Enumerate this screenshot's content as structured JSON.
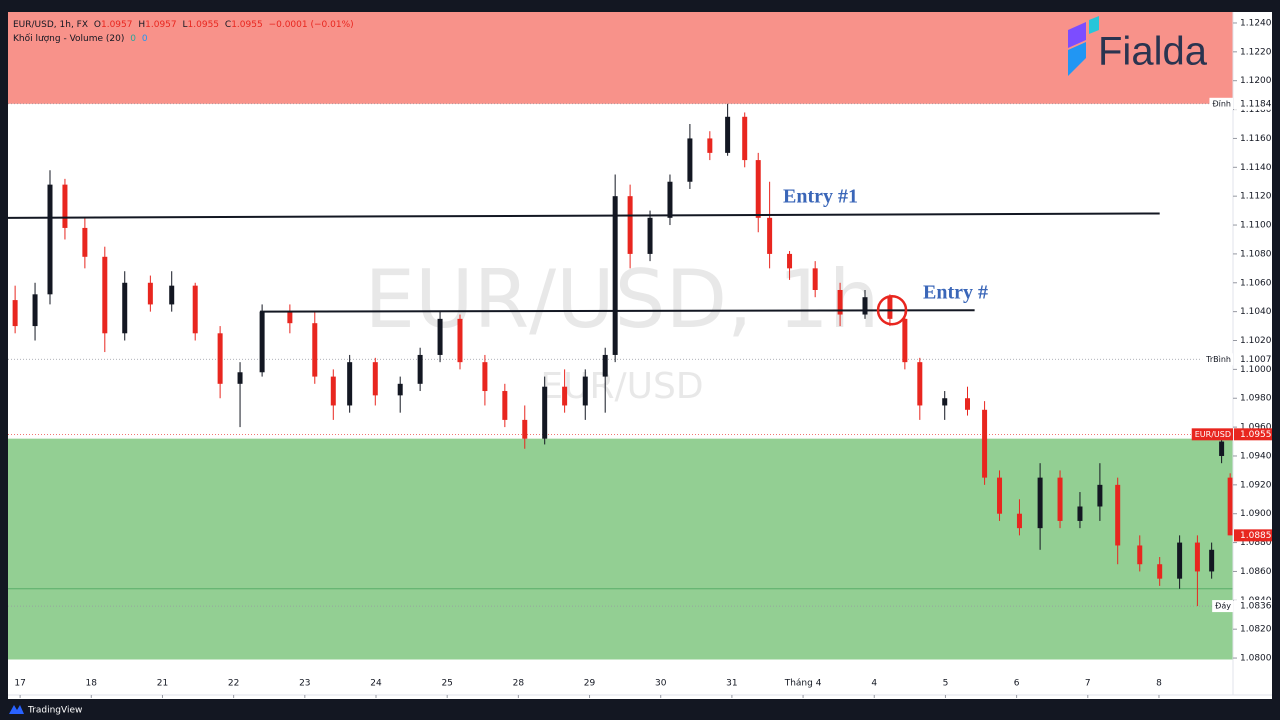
{
  "chart_data": {
    "type": "candlestick",
    "legend": {
      "symbol": "EUR/USD, 1h, FX",
      "o_label": "O",
      "o": 1.0957,
      "h_label": "H",
      "h": 1.0957,
      "l_label": "L",
      "l": 1.0955,
      "c_label": "C",
      "c": 1.0955,
      "change": "−0.0001 (−0.01%)"
    },
    "volume": {
      "label": "Khối lượng - Volume (20)",
      "v1": 0,
      "v2": 0
    },
    "watermark": {
      "main": "EUR/USD, 1h",
      "sub": "EUR/USD"
    },
    "logo": "Fialda",
    "footer": "TradingView",
    "up_color": "#131722",
    "down_color": "#e8261f",
    "xlim": [
      -0.17,
      17.04
    ],
    "ylim": [
      1.07744,
      1.12476
    ],
    "xticks": [
      {
        "value": 0,
        "label": "17"
      },
      {
        "value": 1,
        "label": "18"
      },
      {
        "value": 2,
        "label": "21"
      },
      {
        "value": 3,
        "label": "22"
      },
      {
        "value": 4,
        "label": "23"
      },
      {
        "value": 5,
        "label": "24"
      },
      {
        "value": 6,
        "label": "25"
      },
      {
        "value": 7,
        "label": "28"
      },
      {
        "value": 8,
        "label": "29"
      },
      {
        "value": 9,
        "label": "30"
      },
      {
        "value": 10,
        "label": "31"
      },
      {
        "value": 11,
        "label": "Tháng 4"
      },
      {
        "value": 12,
        "label": "4"
      },
      {
        "value": 13,
        "label": "5"
      },
      {
        "value": 14,
        "label": "6"
      },
      {
        "value": 15,
        "label": "7"
      },
      {
        "value": 16,
        "label": "8"
      }
    ],
    "yticks": [
      {
        "value": 1.124,
        "label": "1.1240"
      },
      {
        "value": 1.122,
        "label": "1.1220"
      },
      {
        "value": 1.12,
        "label": "1.1200"
      },
      {
        "value": 1.118,
        "label": "1.1180"
      },
      {
        "value": 1.116,
        "label": "1.1160"
      },
      {
        "value": 1.114,
        "label": "1.1140"
      },
      {
        "value": 1.112,
        "label": "1.1120"
      },
      {
        "value": 1.11,
        "label": "1.1100"
      },
      {
        "value": 1.108,
        "label": "1.1080"
      },
      {
        "value": 1.106,
        "label": "1.1060"
      },
      {
        "value": 1.104,
        "label": "1.1040"
      },
      {
        "value": 1.102,
        "label": "1.1020"
      },
      {
        "value": 1.1,
        "label": "1.1000"
      },
      {
        "value": 1.098,
        "label": "1.0980"
      },
      {
        "value": 1.096,
        "label": "1.0960"
      },
      {
        "value": 1.094,
        "label": "1.0940"
      },
      {
        "value": 1.092,
        "label": "1.0920"
      },
      {
        "value": 1.09,
        "label": "1.0900"
      },
      {
        "value": 1.088,
        "label": "1.0880"
      },
      {
        "value": 1.086,
        "label": "1.0860"
      },
      {
        "value": 1.084,
        "label": "1.0840"
      },
      {
        "value": 1.082,
        "label": "1.0820"
      },
      {
        "value": 1.08,
        "label": "1.0800"
      }
    ],
    "x": [
      -0.07,
      0.21,
      0.42,
      0.63,
      0.91,
      1.19,
      1.47,
      1.83,
      2.13,
      2.46,
      2.81,
      3.09,
      3.4,
      3.79,
      4.14,
      4.4,
      4.63,
      4.99,
      5.34,
      5.62,
      5.9,
      6.18,
      6.53,
      6.81,
      7.09,
      7.37,
      7.65,
      7.94,
      8.22,
      8.36,
      8.57,
      8.85,
      9.13,
      9.41,
      9.69,
      9.94,
      10.18,
      10.37,
      10.53,
      10.81,
      11.17,
      11.52,
      11.87,
      12.22,
      12.43,
      12.64,
      12.99,
      13.31,
      13.55,
      13.76,
      14.04,
      14.33,
      14.61,
      14.89,
      15.17,
      15.42,
      15.73,
      16.01,
      16.29,
      16.54,
      16.74,
      16.88,
      17.0
    ],
    "open": [
      1.1048,
      1.103,
      1.1052,
      1.1128,
      1.1098,
      1.1078,
      1.1025,
      1.106,
      1.1045,
      1.1058,
      1.1025,
      1.099,
      1.0998,
      1.104,
      1.1032,
      1.0995,
      1.0975,
      1.1005,
      1.0982,
      1.099,
      1.101,
      1.1035,
      1.1005,
      1.0985,
      1.0965,
      1.0952,
      1.0988,
      1.0975,
      1.0995,
      1.101,
      1.112,
      1.108,
      1.1105,
      1.113,
      1.116,
      1.115,
      1.1175,
      1.1145,
      1.1105,
      1.108,
      1.107,
      1.1055,
      1.1038,
      1.105,
      1.1035,
      1.1005,
      1.0975,
      1.098,
      1.0972,
      1.0925,
      1.09,
      1.089,
      1.0925,
      1.0895,
      1.0905,
      1.092,
      1.0878,
      1.0865,
      1.0855,
      1.088,
      1.086,
      1.094,
      1.0925
    ],
    "high": [
      1.1058,
      1.106,
      1.1138,
      1.1132,
      1.1105,
      1.1085,
      1.1068,
      1.1065,
      1.1068,
      1.106,
      1.103,
      1.1005,
      1.1045,
      1.1045,
      1.104,
      1.1,
      1.101,
      1.1008,
      1.0995,
      1.1015,
      1.104,
      1.1038,
      1.101,
      1.099,
      1.0975,
      1.0995,
      1.1,
      1.1,
      1.1015,
      1.1135,
      1.1128,
      1.111,
      1.1135,
      1.117,
      1.1165,
      1.1184,
      1.1178,
      1.115,
      1.113,
      1.1082,
      1.1075,
      1.106,
      1.1055,
      1.1052,
      1.104,
      1.1008,
      1.0985,
      1.0988,
      1.0978,
      1.093,
      1.091,
      1.0935,
      1.093,
      1.0915,
      1.0935,
      1.0925,
      1.0885,
      1.087,
      1.0885,
      1.0885,
      1.088,
      1.0955,
      1.0928
    ],
    "low": [
      1.1025,
      1.102,
      1.1045,
      1.109,
      1.107,
      1.1012,
      1.102,
      1.104,
      1.104,
      1.102,
      1.098,
      1.096,
      1.0995,
      1.1025,
      1.099,
      1.0965,
      1.097,
      1.0975,
      1.097,
      1.0985,
      1.1005,
      1.1,
      1.0975,
      1.096,
      1.0945,
      1.0948,
      1.097,
      1.0965,
      1.097,
      1.1005,
      1.107,
      1.1075,
      1.11,
      1.1125,
      1.1145,
      1.1148,
      1.114,
      1.1095,
      1.107,
      1.1062,
      1.105,
      1.103,
      1.1035,
      1.103,
      1.1,
      1.0965,
      1.0965,
      1.0968,
      1.092,
      1.0895,
      1.0885,
      1.0875,
      1.089,
      1.089,
      1.0895,
      1.0865,
      1.086,
      1.085,
      1.0848,
      1.0836,
      1.0855,
      1.0935,
      1.0885
    ],
    "close": [
      1.103,
      1.1052,
      1.1128,
      1.1098,
      1.1078,
      1.1025,
      1.106,
      1.1045,
      1.1058,
      1.1025,
      1.099,
      1.0998,
      1.104,
      1.1032,
      1.0995,
      1.0975,
      1.1005,
      1.0982,
      1.099,
      1.101,
      1.1035,
      1.1005,
      1.0985,
      1.0965,
      1.0952,
      1.0988,
      1.0975,
      1.0995,
      1.101,
      1.112,
      1.108,
      1.1105,
      1.113,
      1.116,
      1.115,
      1.1175,
      1.1145,
      1.1105,
      1.108,
      1.107,
      1.1055,
      1.1038,
      1.105,
      1.1035,
      1.1005,
      1.0975,
      1.098,
      1.0972,
      1.0925,
      1.09,
      1.089,
      1.0925,
      1.0895,
      1.0905,
      1.092,
      1.0878,
      1.0865,
      1.0855,
      1.088,
      1.086,
      1.0875,
      1.095,
      1.0885
    ],
    "zones": [
      {
        "low": 1.1184,
        "high": 1.12476,
        "color": "#f8928a"
      },
      {
        "low": 1.0799,
        "high": 1.0952,
        "color": "#93cf93"
      }
    ],
    "levels": [
      {
        "value": 1.0848,
        "color": "#5aae6a"
      }
    ],
    "trend_lines": [
      {
        "label": "Entry #1",
        "x": [
          -0.17,
          16.01
        ],
        "y": [
          1.1105,
          1.1108
        ]
      },
      {
        "label": "Entry #",
        "x": [
          3.37,
          13.41
        ],
        "y": [
          1.104,
          1.1041
        ]
      }
    ],
    "marker": {
      "x": 12.25,
      "y": 1.1041
    },
    "price_labels": [
      {
        "name": "Đỉnh",
        "value": 1.1184,
        "style": "plain"
      },
      {
        "name": "TrBình",
        "value": 1.1007,
        "style": "plain"
      },
      {
        "name": "EUR/USD",
        "value": 1.0955,
        "style": "red"
      },
      {
        "value": 1.0885,
        "style": "red"
      },
      {
        "name": "Đáy",
        "value": 1.0836,
        "style": "plain"
      }
    ]
  }
}
